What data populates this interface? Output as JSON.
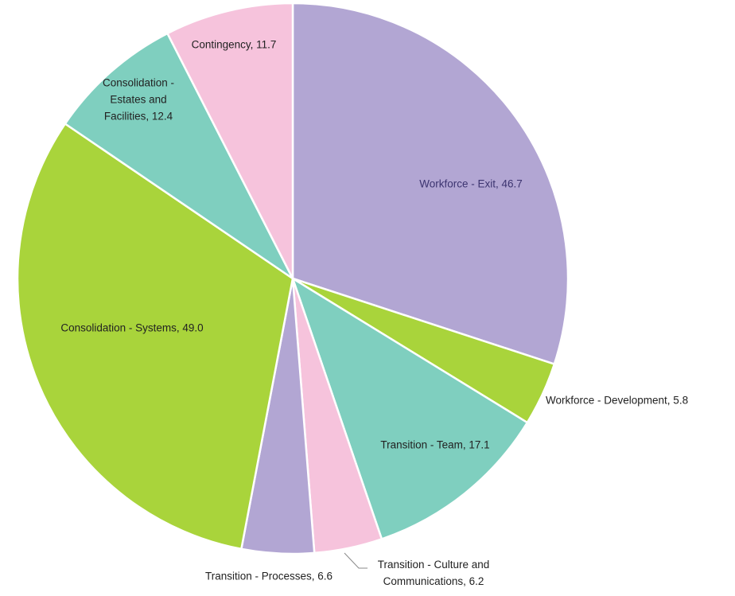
{
  "chart_data": {
    "type": "pie",
    "title": "",
    "start_angle_deg": 0,
    "direction": "clockwise",
    "slices": [
      {
        "name": "Workforce - Exit",
        "value": 46.7,
        "color": "#b2a6d3",
        "label": "Workforce - Exit, 46.7",
        "label_color": "#3c3470"
      },
      {
        "name": "Workforce - Development",
        "value": 5.8,
        "color": "#a9d43b",
        "label": "Workforce - Development, 5.8",
        "label_color": "#222222"
      },
      {
        "name": "Transition - Team",
        "value": 17.1,
        "color": "#7fcfbf",
        "label": "Transition - Team, 17.1",
        "label_color": "#222222"
      },
      {
        "name": "Transition - Culture and Communications",
        "value": 6.2,
        "color": "#f6c3dc",
        "label": [
          "Transition - Culture and",
          "Communications, 6.2"
        ],
        "label_color": "#222222"
      },
      {
        "name": "Transition - Processes",
        "value": 6.6,
        "color": "#b2a6d3",
        "label": "Transition - Processes, 6.6",
        "label_color": "#222222"
      },
      {
        "name": "Consolidation - Systems",
        "value": 49.0,
        "color": "#a9d43b",
        "label": "Consolidation - Systems, 49.0",
        "label_color": "#222222"
      },
      {
        "name": "Consolidation - Estates and Facilities",
        "value": 12.4,
        "color": "#7fcfbf",
        "label": [
          "Consolidation -",
          "Estates and",
          "Facilities, 12.4"
        ],
        "label_color": "#222222"
      },
      {
        "name": "Contingency",
        "value": 11.7,
        "color": "#f6c3dc",
        "label": "Contingency, 11.7",
        "label_color": "#222222"
      }
    ]
  }
}
